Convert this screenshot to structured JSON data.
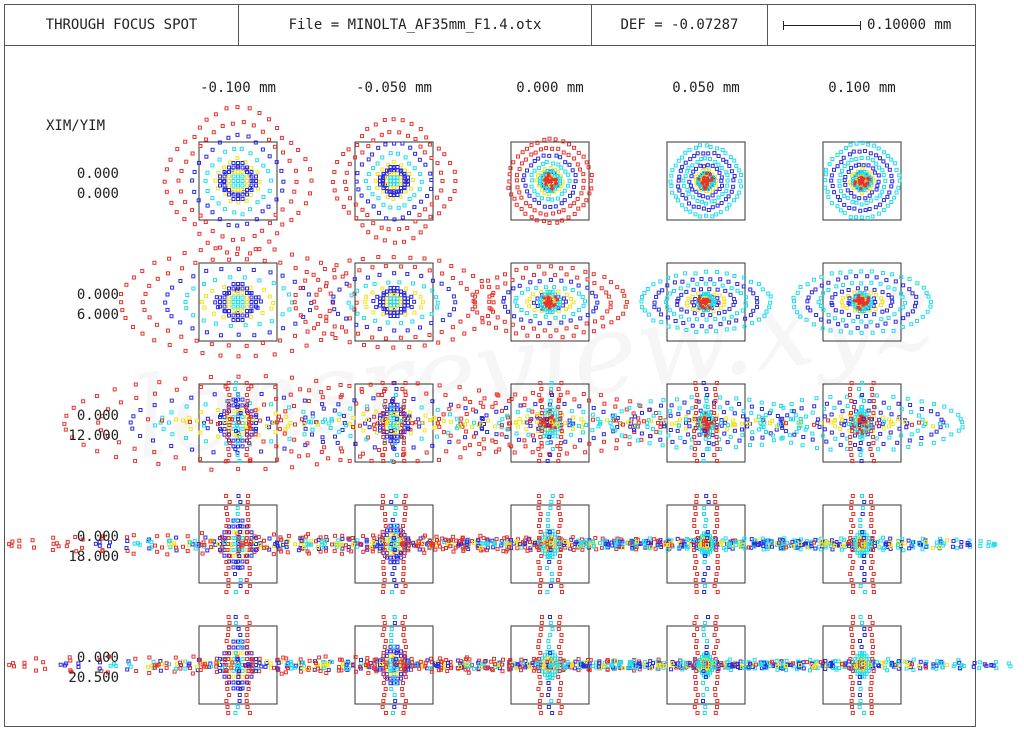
{
  "header": {
    "title": "THROUGH FOCUS SPOT",
    "file": "File = MINOLTA_AF35mm_F1.4.otx",
    "def": "DEF = -0.07287",
    "scale_label": "0.10000 mm"
  },
  "axis_title": "XIM/YIM",
  "watermark": "lensreview.xyz",
  "columns": [
    {
      "label": "-0.100  mm"
    },
    {
      "label": "-0.050  mm"
    },
    {
      "label": "0.000  mm"
    },
    {
      "label": "0.050  mm"
    },
    {
      "label": "0.100  mm"
    }
  ],
  "rows": [
    {
      "xim": "0.000",
      "yim": "0.000"
    },
    {
      "xim": "0.000",
      "yim": "6.000"
    },
    {
      "xim": "0.000",
      "yim": "12.000"
    },
    {
      "xim": "0.000",
      "yim": "18.000"
    },
    {
      "xim": "0.000",
      "yim": "20.500"
    }
  ],
  "colors": {
    "red": "#e8322c",
    "blue": "#2b2be0",
    "cyan": "#22dcec",
    "yellow": "#f4e41c",
    "frame": "#555555"
  },
  "chart_data": {
    "type": "scatter",
    "title": "THROUGH FOCUS SPOT",
    "defocus_mm": [
      -0.1,
      -0.05,
      0.0,
      0.05,
      0.1
    ],
    "field_yim": [
      0.0,
      6.0,
      12.0,
      18.0,
      20.5
    ],
    "field_xim": [
      0.0,
      0.0,
      0.0,
      0.0,
      0.0
    ],
    "scale_mm": 0.1,
    "series": [
      {
        "color": "red"
      },
      {
        "color": "blue"
      },
      {
        "color": "cyan"
      },
      {
        "color": "yellow"
      }
    ]
  }
}
